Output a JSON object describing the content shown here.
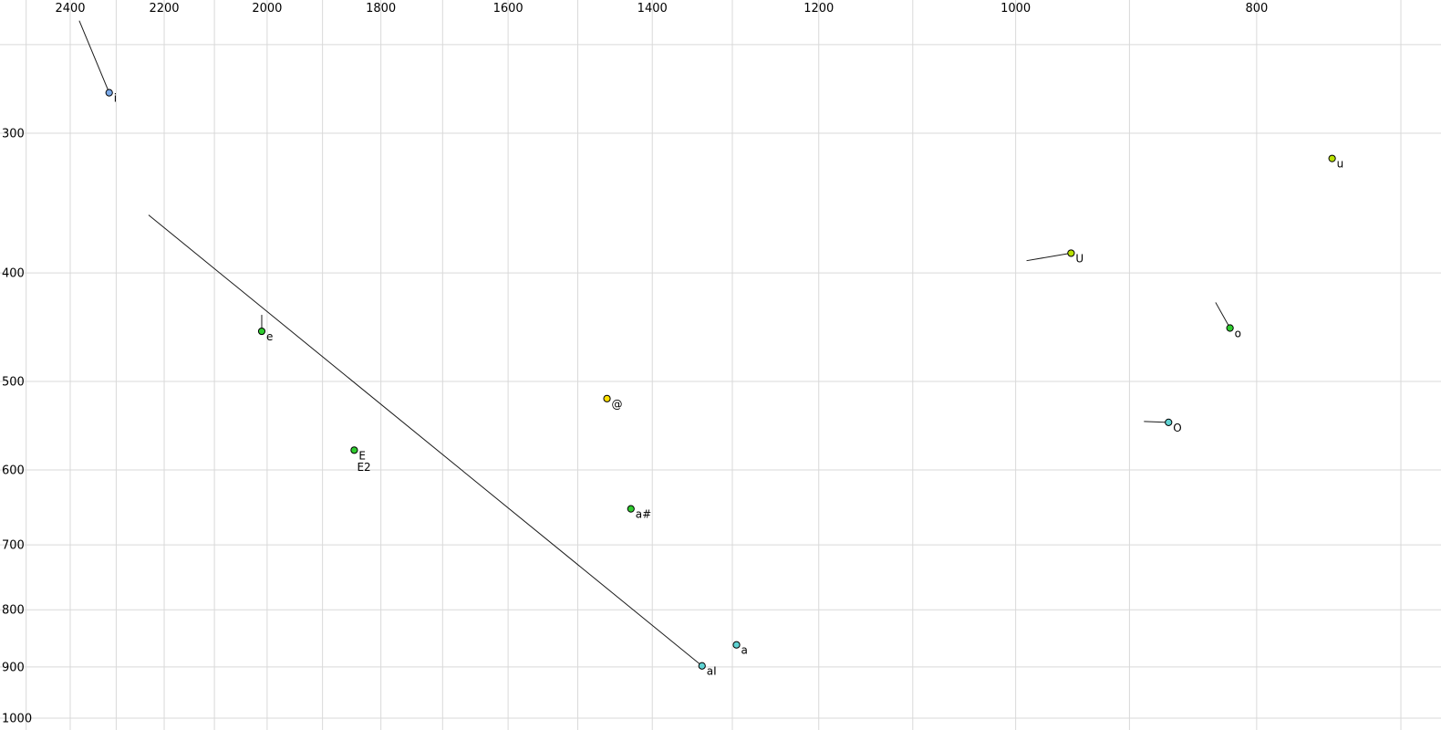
{
  "chart_data": {
    "type": "scatter",
    "title": "",
    "x_axis": {
      "scale": "log",
      "direction": "decreasing-rightward",
      "tick_values": [
        2400,
        2200,
        2000,
        1800,
        1600,
        1400,
        1200,
        1000,
        800
      ],
      "tick_labels": [
        "2400",
        "2200",
        "2000",
        "1800",
        "1600",
        "1400",
        "1200",
        "1000",
        "800"
      ],
      "grid_values": [
        2500,
        2400,
        2300,
        2200,
        2100,
        2000,
        1900,
        1800,
        1700,
        1600,
        1500,
        1400,
        1300,
        1200,
        1100,
        1000,
        900,
        800,
        700
      ],
      "visible_range": [
        2560,
        675
      ]
    },
    "y_axis": {
      "scale": "log",
      "direction": "increasing-downward",
      "tick_values": [
        300,
        400,
        500,
        600,
        700,
        800,
        900,
        1000
      ],
      "tick_labels": [
        "300",
        "400",
        "500",
        "600",
        "700",
        "800",
        "900",
        "1000"
      ],
      "grid_values": [
        250,
        300,
        400,
        500,
        600,
        700,
        800,
        900,
        1000
      ],
      "visible_range": [
        228,
        1025
      ]
    },
    "points": [
      {
        "label": "i",
        "f2": 2315,
        "f1": 276,
        "color": "#7aa9e8",
        "tail": {
          "f2": 2380,
          "f1": 238
        }
      },
      {
        "label": "e",
        "f2": 2010,
        "f1": 451,
        "color": "#2fcc2f",
        "tail": {
          "f2": 2010,
          "f1": 436
        }
      },
      {
        "label": "E",
        "f2": 1845,
        "f1": 576,
        "color": "#2fcc2f",
        "tail": null
      },
      {
        "label": "E2",
        "f2": 1848,
        "f1": 590,
        "color": "#2fcc2f",
        "tail": null,
        "dot": false
      },
      {
        "label": "@",
        "f2": 1460,
        "f1": 518,
        "color": "#ffdf00",
        "tail": null
      },
      {
        "label": "a#",
        "f2": 1428,
        "f1": 650,
        "color": "#2fcc2f",
        "tail": null
      },
      {
        "label": "aI",
        "f2": 1337,
        "f1": 898,
        "color": "#5fd3d3",
        "tail": {
          "f2": 2232,
          "f1": 355
        }
      },
      {
        "label": "a",
        "f2": 1295,
        "f1": 860,
        "color": "#5fd3d3",
        "tail": null
      },
      {
        "label": "U",
        "f2": 950,
        "f1": 384,
        "color": "#b8e000",
        "tail": {
          "f2": 990,
          "f1": 390
        }
      },
      {
        "label": "O",
        "f2": 868,
        "f1": 544,
        "color": "#5fd3d3",
        "tail": {
          "f2": 888,
          "f1": 543
        }
      },
      {
        "label": "o",
        "f2": 820,
        "f1": 448,
        "color": "#2fcc2f",
        "tail": {
          "f2": 831,
          "f1": 425
        }
      },
      {
        "label": "u",
        "f2": 746,
        "f1": 316,
        "color": "#b8e000",
        "tail": null
      }
    ],
    "style": {
      "background": "#ffffff",
      "grid_color": "#d9d9d9",
      "tick_color": "#000000",
      "line_color": "#1a1a1a",
      "dot_stroke": "#000000"
    }
  }
}
